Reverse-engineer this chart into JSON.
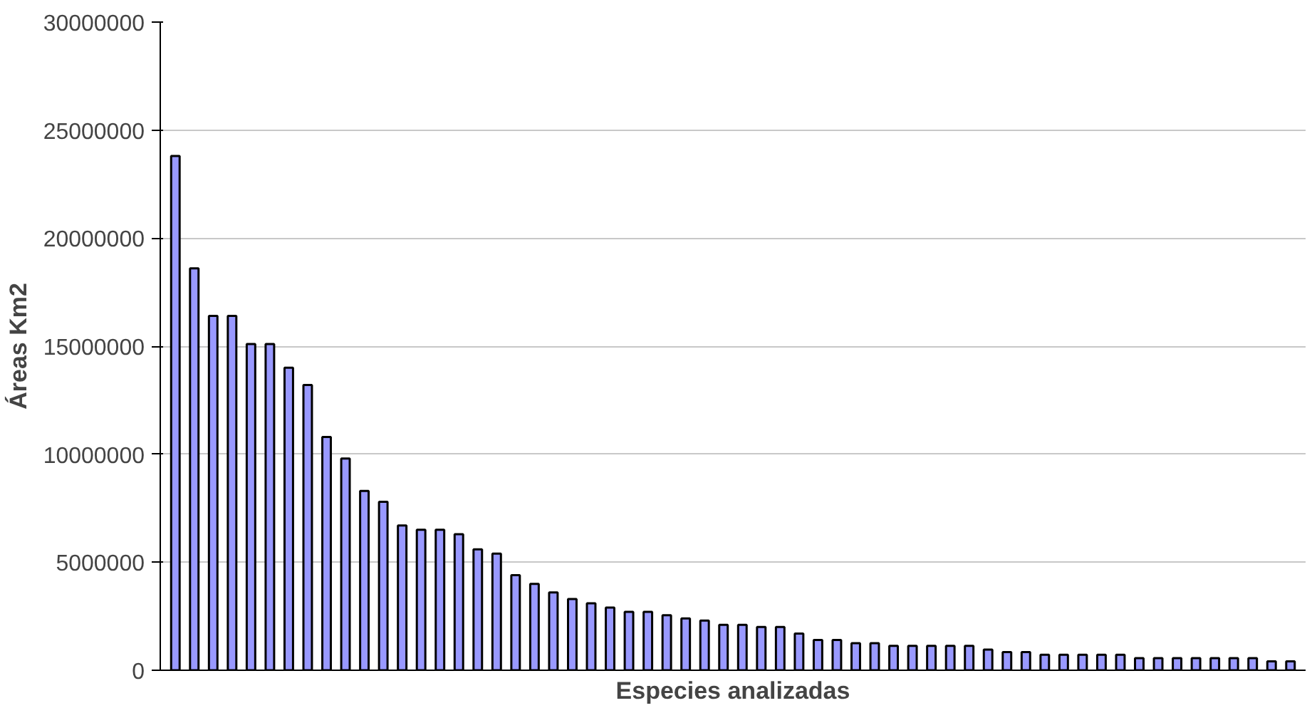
{
  "chart_data": {
    "type": "bar",
    "xlabel": "Especies analizadas",
    "ylabel": "Áreas Km2",
    "categories": [
      null,
      null,
      null,
      null,
      null,
      null,
      null,
      null,
      null,
      null,
      null,
      null,
      null,
      null,
      null,
      null,
      null,
      null,
      null,
      null,
      null,
      null,
      null,
      null,
      null,
      null,
      null,
      null,
      null,
      null,
      null,
      null,
      null,
      null,
      null,
      null,
      null,
      null,
      null,
      null,
      null,
      null,
      null,
      null,
      null,
      null,
      null,
      null,
      null,
      null,
      null,
      null,
      null,
      null,
      null,
      null,
      null,
      null,
      null,
      null
    ],
    "values": [
      23800000,
      18600000,
      16400000,
      16400000,
      15100000,
      15100000,
      14000000,
      13200000,
      10800000,
      9800000,
      8300000,
      7800000,
      6700000,
      6500000,
      6500000,
      6300000,
      5600000,
      5400000,
      4400000,
      4000000,
      3600000,
      3300000,
      3100000,
      2900000,
      2700000,
      2700000,
      2550000,
      2400000,
      2300000,
      2100000,
      2100000,
      2000000,
      2000000,
      1700000,
      1400000,
      1400000,
      1250000,
      1250000,
      1130000,
      1130000,
      1130000,
      1130000,
      1130000,
      960000,
      840000,
      840000,
      720000,
      720000,
      720000,
      720000,
      720000,
      560000,
      560000,
      560000,
      560000,
      560000,
      560000,
      560000,
      410000,
      410000
    ],
    "color": "#9999ff",
    "ylim": [
      0,
      30000000
    ],
    "yticks": [
      0,
      5000000,
      10000000,
      15000000,
      20000000,
      25000000,
      30000000
    ],
    "grid": "y",
    "tick_labels": "y"
  }
}
